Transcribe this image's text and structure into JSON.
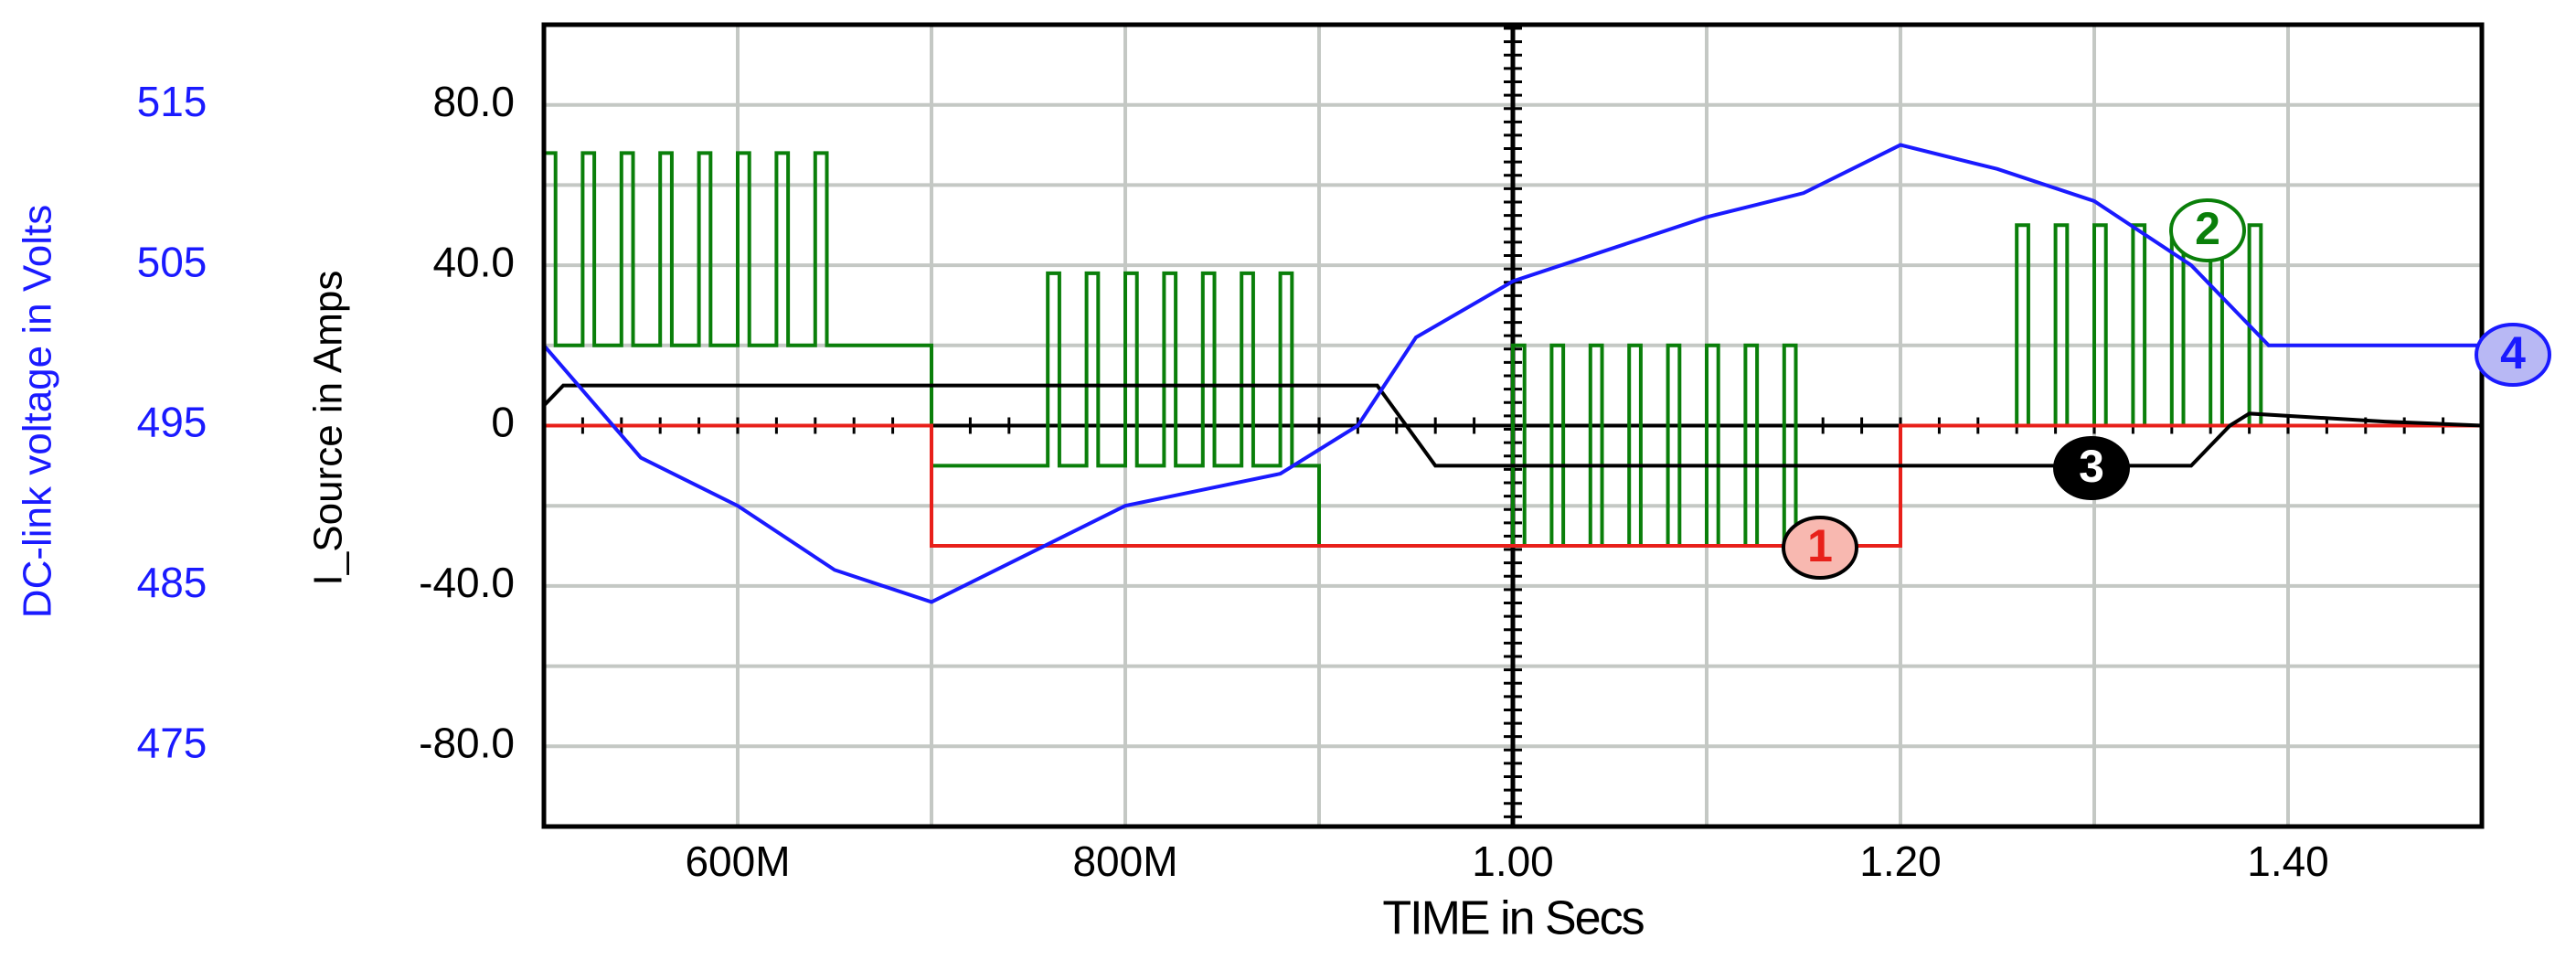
{
  "chart_data": {
    "type": "line",
    "x_label": "TIME in Secs",
    "y_label": "I_Source in Amps",
    "y2_label": "DC-link voltage in Volts",
    "xlim": [
      0.5,
      1.5
    ],
    "xticks": [
      {
        "value": 0.6,
        "label": "600M"
      },
      {
        "value": 0.8,
        "label": "800M"
      },
      {
        "value": 1.0,
        "label": "1.00"
      },
      {
        "value": 1.2,
        "label": "1.20"
      },
      {
        "value": 1.4,
        "label": "1.40"
      }
    ],
    "x_minor_ticks": [
      0.7,
      0.9,
      1.1,
      1.3
    ],
    "ylim": [
      -100,
      100
    ],
    "yticks": [
      {
        "value": 80,
        "label": "80.0"
      },
      {
        "value": 40,
        "label": "40.0"
      },
      0,
      {
        "value": -40,
        "label": "-40.0"
      },
      {
        "value": -80,
        "label": "-80.0"
      }
    ],
    "y_minor_ticks": [
      60,
      20,
      -20,
      -60
    ],
    "y2lim": [
      470,
      520
    ],
    "y2ticks": [
      515,
      505,
      495,
      485,
      475
    ],
    "grid": true,
    "series": [
      {
        "name": "1",
        "color": "#e8201a",
        "x": [
          0.5,
          0.7,
          0.7,
          1.2,
          1.2,
          1.5
        ],
        "values": [
          0,
          0,
          -30,
          -30,
          0,
          0
        ]
      },
      {
        "name": "2",
        "color": "#0a7f0a",
        "x": [
          0.5,
          0.5,
          0.506,
          0.506,
          0.52,
          0.52,
          0.526,
          0.526,
          0.54,
          0.54,
          0.546,
          0.546,
          0.56,
          0.56,
          0.566,
          0.566,
          0.58,
          0.58,
          0.586,
          0.586,
          0.6,
          0.6,
          0.606,
          0.606,
          0.62,
          0.62,
          0.626,
          0.626,
          0.64,
          0.64,
          0.646,
          0.646,
          0.7,
          0.7,
          0.76,
          0.76,
          0.766,
          0.766,
          0.78,
          0.78,
          0.786,
          0.786,
          0.8,
          0.8,
          0.806,
          0.806,
          0.82,
          0.82,
          0.826,
          0.826,
          0.84,
          0.84,
          0.846,
          0.846,
          0.86,
          0.86,
          0.866,
          0.866,
          0.88,
          0.88,
          0.886,
          0.886,
          0.9,
          0.9,
          1.0,
          1.0,
          1.006,
          1.006,
          1.02,
          1.02,
          1.026,
          1.026,
          1.04,
          1.04,
          1.046,
          1.046,
          1.06,
          1.06,
          1.066,
          1.066,
          1.08,
          1.08,
          1.086,
          1.086,
          1.1,
          1.1,
          1.106,
          1.106,
          1.12,
          1.12,
          1.126,
          1.126,
          1.14,
          1.14,
          1.146,
          1.146,
          1.2,
          1.2,
          1.26,
          1.26,
          1.266,
          1.266,
          1.28,
          1.28,
          1.286,
          1.286,
          1.3,
          1.3,
          1.306,
          1.306,
          1.32,
          1.32,
          1.326,
          1.326,
          1.34,
          1.34,
          1.346,
          1.346,
          1.36,
          1.36,
          1.366,
          1.366,
          1.38,
          1.38,
          1.386,
          1.386,
          1.5
        ],
        "values": [
          20,
          68,
          68,
          20,
          20,
          68,
          68,
          20,
          20,
          68,
          68,
          20,
          20,
          68,
          68,
          20,
          20,
          68,
          68,
          20,
          20,
          68,
          68,
          20,
          20,
          68,
          68,
          20,
          20,
          68,
          68,
          20,
          20,
          -10,
          -10,
          38,
          38,
          -10,
          -10,
          38,
          38,
          -10,
          -10,
          38,
          38,
          -10,
          -10,
          38,
          38,
          -10,
          -10,
          38,
          38,
          -10,
          -10,
          38,
          38,
          -10,
          -10,
          38,
          38,
          -10,
          -10,
          -30,
          -30,
          20,
          20,
          -30,
          -30,
          20,
          20,
          -30,
          -30,
          20,
          20,
          -30,
          -30,
          20,
          20,
          -30,
          -30,
          20,
          20,
          -30,
          -30,
          20,
          20,
          -30,
          -30,
          20,
          20,
          -30,
          -30,
          20,
          20,
          -30,
          -30,
          0,
          0,
          50,
          50,
          0,
          0,
          50,
          50,
          0,
          0,
          50,
          50,
          0,
          0,
          50,
          50,
          0,
          0,
          50,
          50,
          0,
          0,
          50,
          50,
          0,
          0,
          50,
          50,
          0,
          0
        ]
      },
      {
        "name": "3",
        "color": "#000000",
        "x": [
          0.5,
          0.51,
          0.93,
          0.96,
          1.35,
          1.37,
          1.38,
          1.45,
          1.5
        ],
        "values": [
          5,
          10,
          10,
          -10,
          -10,
          0,
          3,
          1,
          0
        ]
      },
      {
        "name": "4",
        "color": "#1a1aff",
        "axis": "y2",
        "x": [
          0.5,
          0.55,
          0.6,
          0.65,
          0.7,
          0.75,
          0.8,
          0.88,
          0.92,
          0.95,
          1.0,
          1.05,
          1.1,
          1.15,
          1.2,
          1.25,
          1.3,
          1.35,
          1.39,
          1.42,
          1.5
        ],
        "values": [
          500,
          493,
          490,
          486,
          484,
          487,
          490,
          492,
          495,
          500.5,
          504,
          506,
          508,
          509.5,
          512.5,
          511,
          509,
          505,
          500,
          500,
          500
        ]
      }
    ]
  }
}
